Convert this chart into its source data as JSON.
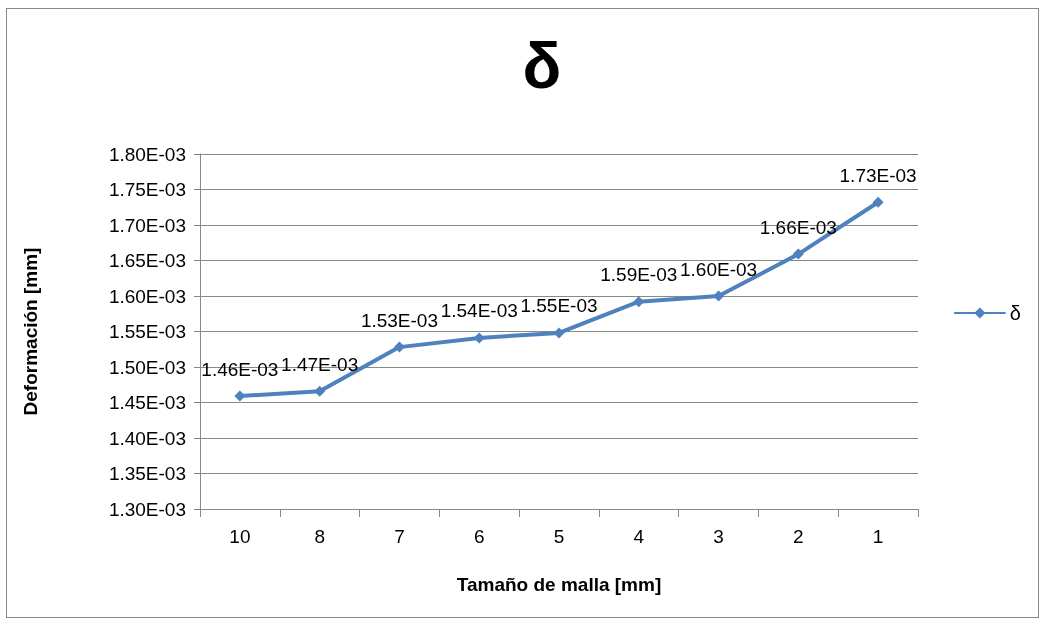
{
  "chart_data": {
    "type": "line",
    "title": "δ",
    "xlabel": "Tamaño de malla [mm]",
    "ylabel": "Deformación [mm]",
    "categories": [
      "10",
      "8",
      "7",
      "6",
      "5",
      "4",
      "3",
      "2",
      "1"
    ],
    "series": [
      {
        "name": "δ",
        "color": "#4f81bd",
        "values": [
          0.001459,
          0.001466,
          0.001528,
          0.001541,
          0.001548,
          0.001592,
          0.0016,
          0.001659,
          0.001732
        ],
        "value_labels": [
          "1.46E-03",
          "1.47E-03",
          "1.53E-03",
          "1.54E-03",
          "1.55E-03",
          "1.59E-03",
          "1.60E-03",
          "1.66E-03",
          "1.73E-03"
        ]
      }
    ],
    "ylim": [
      0.0013,
      0.0018
    ],
    "yticks": [
      {
        "value": 0.0013,
        "label": "1.30E-03"
      },
      {
        "value": 0.00135,
        "label": "1.35E-03"
      },
      {
        "value": 0.0014,
        "label": "1.40E-03"
      },
      {
        "value": 0.00145,
        "label": "1.45E-03"
      },
      {
        "value": 0.0015,
        "label": "1.50E-03"
      },
      {
        "value": 0.00155,
        "label": "1.55E-03"
      },
      {
        "value": 0.0016,
        "label": "1.60E-03"
      },
      {
        "value": 0.00165,
        "label": "1.65E-03"
      },
      {
        "value": 0.0017,
        "label": "1.70E-03"
      },
      {
        "value": 0.00175,
        "label": "1.75E-03"
      },
      {
        "value": 0.0018,
        "label": "1.80E-03"
      }
    ],
    "grid": "y",
    "legend": "right",
    "marker": "diamond",
    "line_style": "solid"
  }
}
